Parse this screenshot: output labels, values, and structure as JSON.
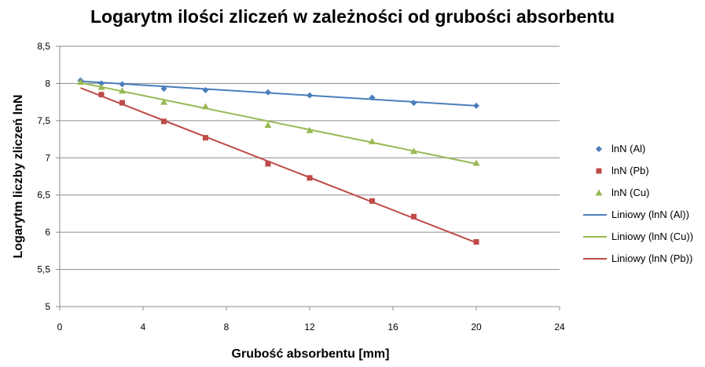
{
  "chart_data": {
    "type": "scatter",
    "title": "Logarytm ilości zliczeń w zależności od grubości absorbentu",
    "xlabel": "Grubość absorbentu  [mm]",
    "ylabel": "Logarytm liczby  zliczeń lnN",
    "xlim": [
      0,
      24
    ],
    "ylim": [
      5,
      8.5
    ],
    "xticks": [
      "0",
      "4",
      "8",
      "12",
      "16",
      "20",
      "24"
    ],
    "yticks": [
      "5",
      "5,5",
      "6",
      "6,5",
      "7",
      "7,5",
      "8",
      "8,5"
    ],
    "grid": "horizontal",
    "legend_position": "right",
    "series": [
      {
        "name": "lnN (Al)",
        "marker": "diamond",
        "color": "#4a7ebb",
        "x": [
          1,
          2,
          3,
          5,
          7,
          10,
          12,
          15,
          17,
          20
        ],
        "y": [
          8.04,
          8.0,
          7.99,
          7.93,
          7.91,
          7.88,
          7.84,
          7.81,
          7.74,
          7.7
        ]
      },
      {
        "name": "lnN (Pb)",
        "marker": "square",
        "color": "#be4b48",
        "x": [
          2,
          3,
          5,
          7,
          10,
          12,
          15,
          17,
          20
        ],
        "y": [
          7.85,
          7.74,
          7.49,
          7.27,
          6.92,
          6.73,
          6.42,
          6.21,
          5.87
        ]
      },
      {
        "name": "lnN (Cu)",
        "marker": "triangle",
        "color": "#98b954",
        "x": [
          1,
          2,
          3,
          5,
          7,
          10,
          12,
          15,
          17,
          20
        ],
        "y": [
          8.02,
          7.95,
          7.9,
          7.75,
          7.69,
          7.44,
          7.37,
          7.22,
          7.09,
          6.93
        ]
      }
    ],
    "trendlines": [
      {
        "name": "Liniowy (lnN (Al))",
        "color": "#4a7ebb",
        "x": [
          1,
          20
        ],
        "y": [
          8.03,
          7.7
        ]
      },
      {
        "name": "Liniowy (lnN (Cu))",
        "color": "#98b954",
        "x": [
          1,
          20
        ],
        "y": [
          8.01,
          6.92
        ]
      },
      {
        "name": "Liniowy (lnN (Pb))",
        "color": "#be4b48",
        "x": [
          1,
          20
        ],
        "y": [
          7.94,
          5.86
        ]
      }
    ]
  }
}
